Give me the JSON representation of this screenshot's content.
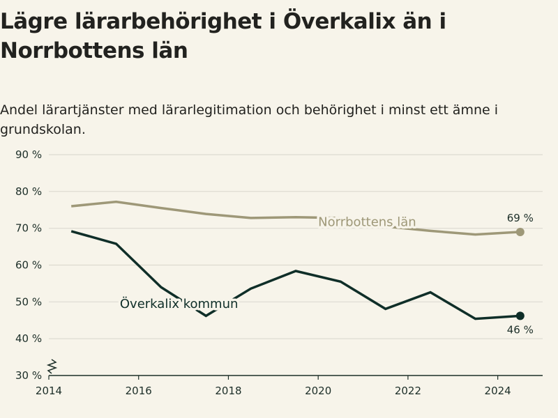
{
  "title": "Lägre lärarbehörighet i Överkalix än i Norrbottens län",
  "subtitle": "Andel lärartjänster med lärarlegitimation och behörighet i minst ett ämne i grundskolan.",
  "chart_data": {
    "type": "line",
    "title": "Lägre lärarbehörighet i Överkalix än i Norrbottens län",
    "subtitle": "Andel lärartjänster med lärarlegitimation och behörighet i minst ett ämne i grundskolan.",
    "xlabel": "",
    "ylabel": "",
    "xlim": [
      2014,
      2025
    ],
    "ylim": [
      30,
      90
    ],
    "x_ticks": [
      2014,
      2016,
      2018,
      2020,
      2022,
      2024
    ],
    "x_tick_labels": [
      "2014",
      "2016",
      "2018",
      "2020",
      "2022",
      "2024"
    ],
    "y_ticks": [
      30,
      40,
      50,
      60,
      70,
      80,
      90
    ],
    "y_tick_labels": [
      "30 %",
      "40 %",
      "50 %",
      "60 %",
      "70 %",
      "80 %",
      "90 %"
    ],
    "grid": true,
    "y_axis_break": true,
    "series": [
      {
        "name": "Norrbottens län",
        "color": "#9e9878",
        "x": [
          2014.5,
          2015.5,
          2016.5,
          2017.5,
          2018.5,
          2019.5,
          2020.5,
          2021.5,
          2022.5,
          2023.5,
          2024.5
        ],
        "values": [
          76,
          77.2,
          75.5,
          73.9,
          72.8,
          73,
          72.8,
          70.5,
          69.3,
          68.3,
          69
        ],
        "end_label": "69 %"
      },
      {
        "name": "Överkalix kommun",
        "color": "#0f2e28",
        "x": [
          2014.5,
          2015.5,
          2016.5,
          2017.5,
          2018.5,
          2019.5,
          2020.5,
          2021.5,
          2022.5,
          2023.5,
          2024.5
        ],
        "values": [
          69.2,
          65.8,
          54,
          46.2,
          53.6,
          58.4,
          55.5,
          48.1,
          52.6,
          45.4,
          46.2
        ],
        "end_label": "46 %"
      }
    ]
  }
}
